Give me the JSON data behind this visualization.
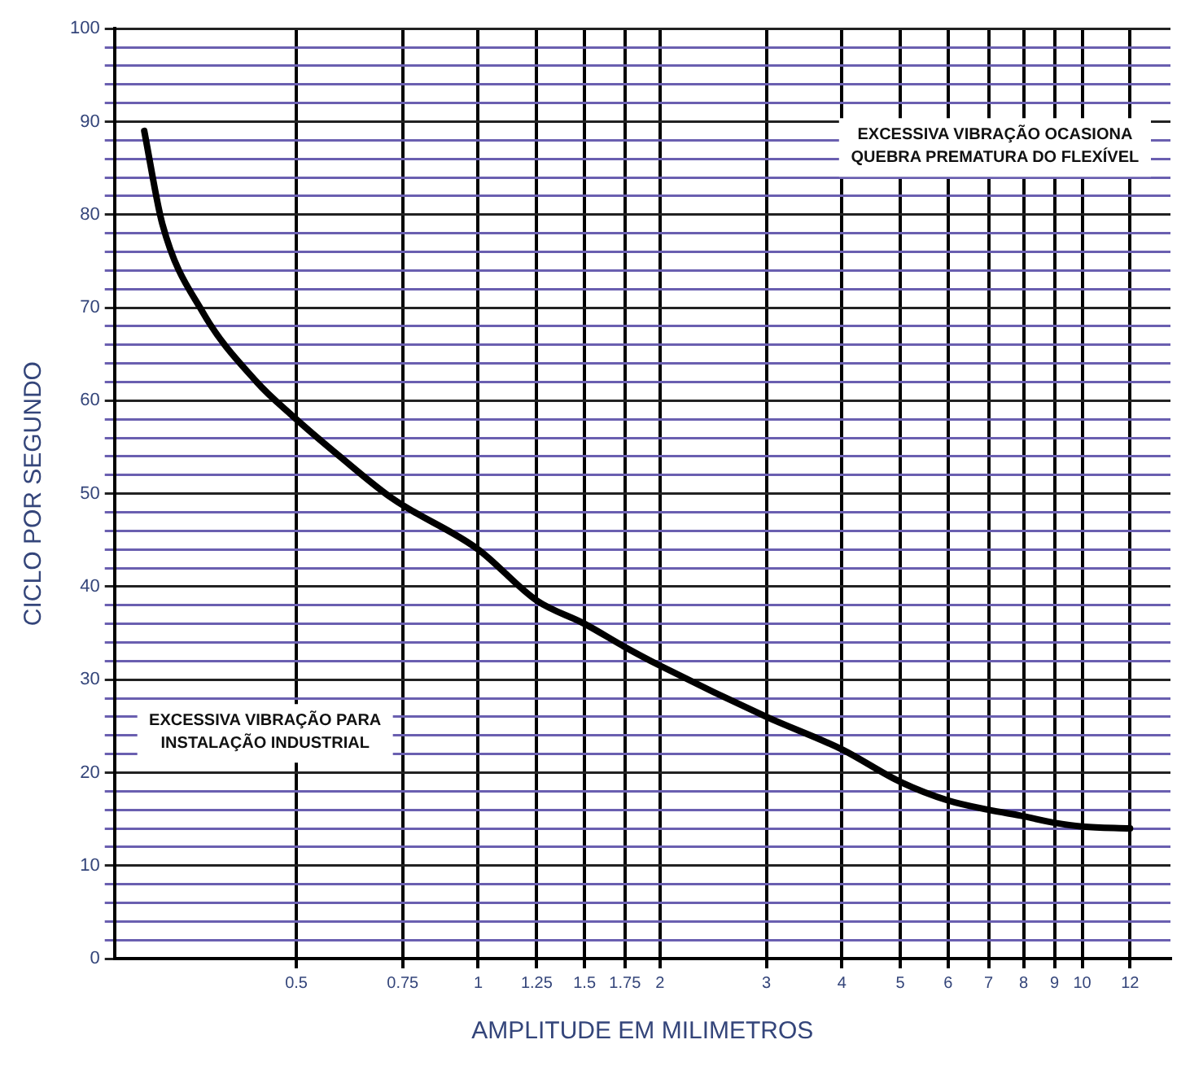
{
  "chart_data": {
    "type": "line",
    "xlabel": "AMPLITUDE EM MILIMETROS",
    "ylabel": "CICLO POR SEGUNDO",
    "annotations": [
      "EXCESSIVA VIBRAÇÃO OCASIONA\nQUEBRA PREMATURA DO FLEXÍVEL",
      "EXCESSIVA VIBRAÇÃO PARA\nINSTALAÇÃO INDUSTRIAL"
    ],
    "log": "x",
    "grid": true,
    "marker": "none",
    "line_style": "solid",
    "xlim": [
      0.25,
      14
    ],
    "ylim": [
      0,
      100
    ],
    "xticks": [
      0.5,
      0.75,
      1,
      1.25,
      1.5,
      1.75,
      2,
      3,
      4,
      5,
      6,
      7,
      8,
      9,
      10,
      12
    ],
    "yticks": [
      0,
      {
        "value": 2,
        "label": null
      },
      {
        "value": 4,
        "label": null
      },
      {
        "value": 6,
        "label": null
      },
      {
        "value": 8,
        "label": null
      },
      10,
      {
        "value": 12,
        "label": null
      },
      {
        "value": 14,
        "label": null
      },
      {
        "value": 16,
        "label": null
      },
      {
        "value": 18,
        "label": null
      },
      20,
      {
        "value": 22,
        "label": null
      },
      {
        "value": 24,
        "label": null
      },
      {
        "value": 26,
        "label": null
      },
      {
        "value": 28,
        "label": null
      },
      30,
      {
        "value": 32,
        "label": null
      },
      {
        "value": 34,
        "label": null
      },
      {
        "value": 36,
        "label": null
      },
      {
        "value": 38,
        "label": null
      },
      40,
      {
        "value": 42,
        "label": null
      },
      {
        "value": 44,
        "label": null
      },
      {
        "value": 46,
        "label": null
      },
      {
        "value": 48,
        "label": null
      },
      50,
      {
        "value": 52,
        "label": null
      },
      {
        "value": 54,
        "label": null
      },
      {
        "value": 56,
        "label": null
      },
      {
        "value": 58,
        "label": null
      },
      60,
      {
        "value": 62,
        "label": null
      },
      {
        "value": 64,
        "label": null
      },
      {
        "value": 66,
        "label": null
      },
      {
        "value": 68,
        "label": null
      },
      70,
      {
        "value": 72,
        "label": null
      },
      {
        "value": 74,
        "label": null
      },
      {
        "value": 76,
        "label": null
      },
      {
        "value": 78,
        "label": null
      },
      80,
      {
        "value": 82,
        "label": null
      },
      {
        "value": 84,
        "label": null
      },
      {
        "value": 86,
        "label": null
      },
      {
        "value": 88,
        "label": null
      },
      90,
      {
        "value": 92,
        "label": null
      },
      {
        "value": 94,
        "label": null
      },
      {
        "value": 96,
        "label": null
      },
      {
        "value": 98,
        "label": null
      },
      100
    ],
    "series": [
      {
        "color": "#000000",
        "x": [
          0.28,
          0.3,
          0.35,
          0.43,
          0.49,
          0.59,
          0.72,
          1,
          1.25,
          1.5,
          1.75,
          2,
          3,
          4,
          5,
          6,
          7,
          8,
          9,
          10,
          12
        ],
        "values": [
          89,
          79,
          69.5,
          62,
          58.5,
          54,
          49.5,
          44,
          38.5,
          36,
          33.5,
          31.5,
          26,
          22.5,
          19,
          17,
          16,
          15.3,
          14.6,
          14.2,
          14
        ]
      }
    ]
  }
}
